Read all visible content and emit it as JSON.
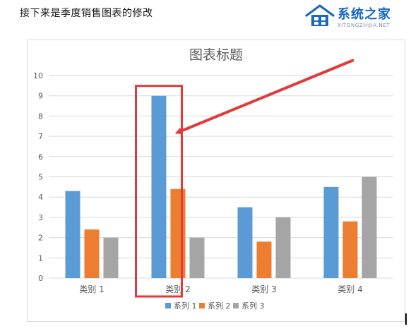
{
  "caption": "接下来是季度销售图表的修改",
  "logo": {
    "name": "系统之家",
    "sub": "XITONGZHIJIA.NET"
  },
  "colors": {
    "series1": "#5b9bd5",
    "series2": "#ed7d31",
    "series3": "#a5a5a5",
    "highlight": "#e03a3a",
    "grid": "#d9d9d9",
    "axis_text": "#595959",
    "logo": "#1a66c2"
  },
  "chart_data": {
    "type": "bar",
    "title": "图表标题",
    "categories": [
      "类别 1",
      "类别 2",
      "类别 3",
      "类别 4"
    ],
    "series": [
      {
        "name": "系列 1",
        "values": [
          4.3,
          9.0,
          3.5,
          4.5
        ]
      },
      {
        "name": "系列 2",
        "values": [
          2.4,
          4.4,
          1.8,
          2.8
        ]
      },
      {
        "name": "系列 3",
        "values": [
          2.0,
          2.0,
          3.0,
          5.0
        ]
      }
    ],
    "ylim": [
      0,
      10
    ],
    "yticks": [
      0,
      1,
      2,
      3,
      4,
      5,
      6,
      7,
      8,
      9,
      10
    ],
    "grid": true,
    "legend": "bottom",
    "annotation": {
      "type": "highlight-box-with-arrow",
      "target_category": "类别 2",
      "target_series": "系列 1"
    }
  }
}
